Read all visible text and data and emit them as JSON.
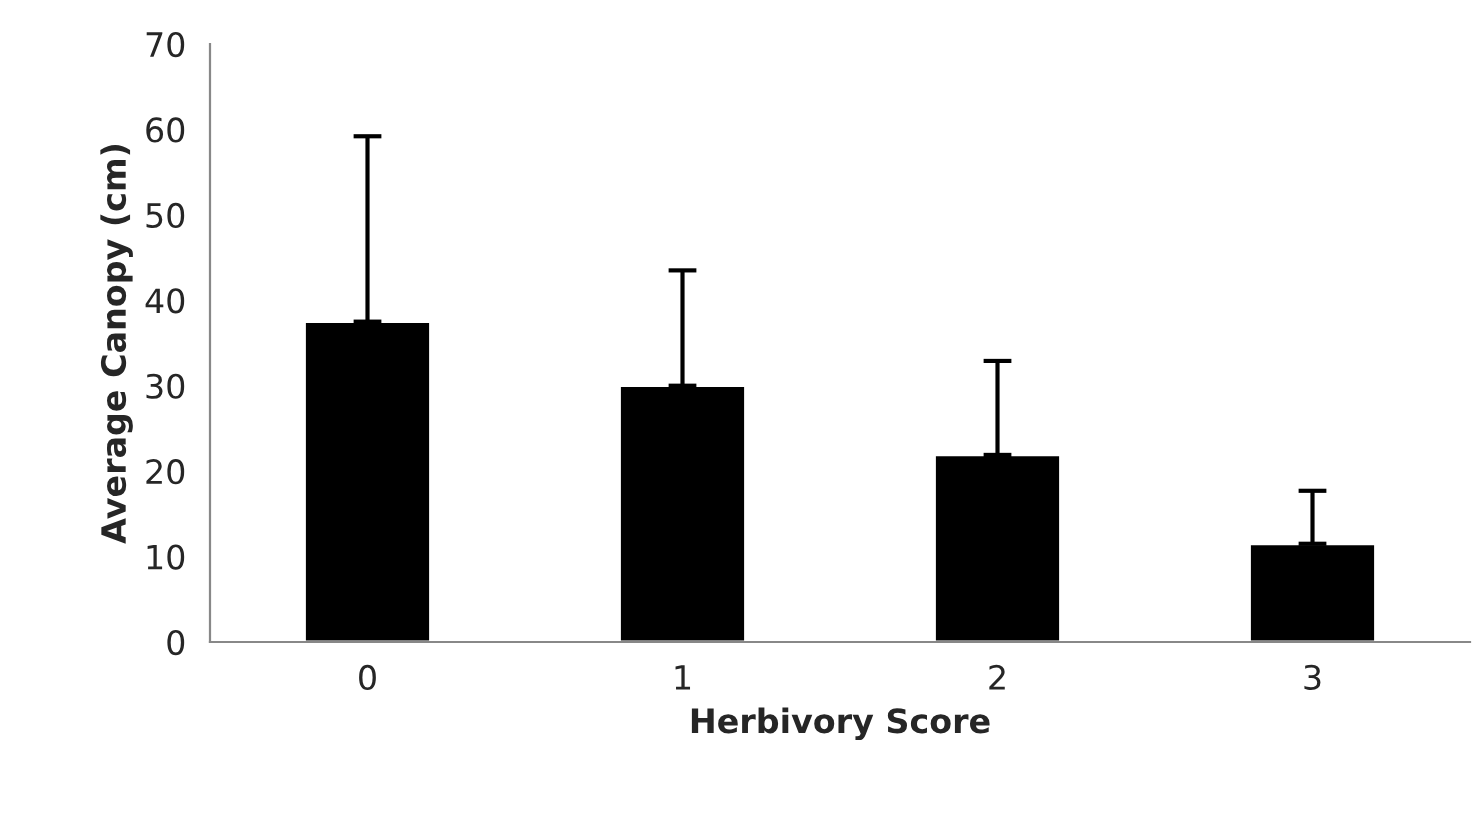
{
  "chart_data": {
    "type": "bar",
    "xlabel": "Herbivory Score",
    "ylabel": "Average Canopy (cm)",
    "categories": [
      "0",
      "1",
      "2",
      "3"
    ],
    "series": [
      {
        "color": "#000000",
        "values": [
          37.5,
          30,
          21.9,
          11.5
        ],
        "errors": [
          [
            37.5,
            59.2
          ],
          [
            30,
            43.5
          ],
          [
            21.9,
            32.9
          ],
          [
            11.5,
            17.7
          ]
        ]
      }
    ],
    "ylim": [
      0,
      70
    ],
    "yticks": [
      0,
      10,
      20,
      30,
      40,
      50,
      60,
      70
    ],
    "grid": false,
    "legend": false
  }
}
